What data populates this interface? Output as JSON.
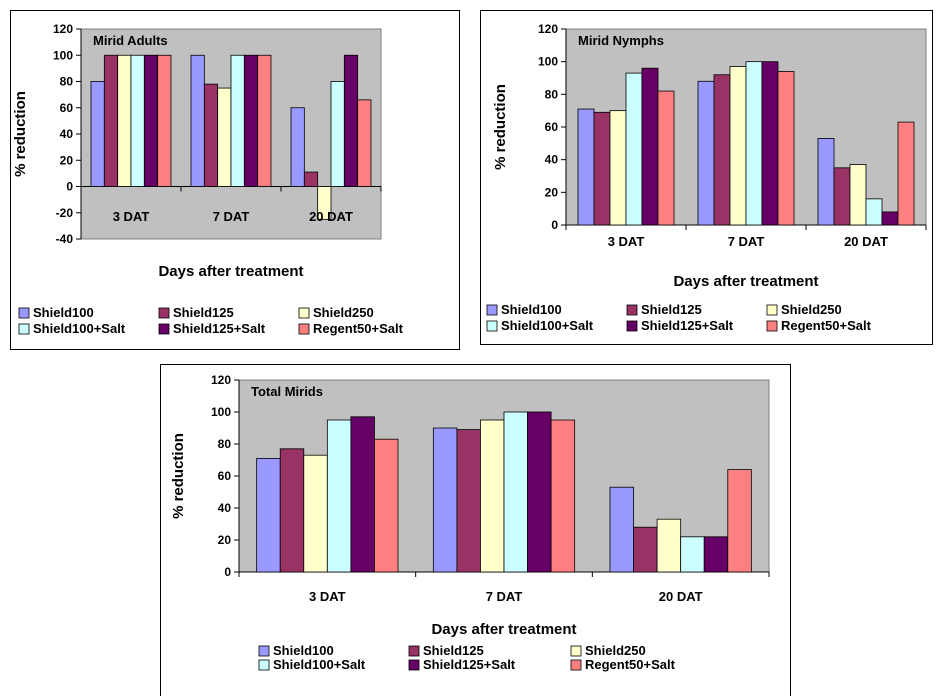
{
  "chart_data": [
    {
      "type": "bar",
      "title": "Mirid Adults",
      "xlabel": "Days after treatment",
      "ylabel": "% reduction",
      "ylim": [
        -40,
        120
      ],
      "yticks": [
        -40,
        -20,
        0,
        20,
        40,
        60,
        80,
        100,
        120
      ],
      "grid": false,
      "legend_position": "bottom",
      "categories": [
        "3 DAT",
        "7 DAT",
        "20 DAT"
      ],
      "series": [
        {
          "name": "Shield100",
          "color": "#9999ff",
          "values": [
            80,
            100,
            60
          ]
        },
        {
          "name": "Shield125",
          "color": "#993366",
          "values": [
            100,
            78,
            11
          ]
        },
        {
          "name": "Shield250",
          "color": "#ffffcc",
          "values": [
            100,
            75,
            -25
          ]
        },
        {
          "name": "Shield100+Salt",
          "color": "#ccffff",
          "values": [
            100,
            100,
            80
          ]
        },
        {
          "name": "Shield125+Salt",
          "color": "#660066",
          "values": [
            100,
            100,
            100
          ]
        },
        {
          "name": "Regent50+Salt",
          "color": "#ff8080",
          "values": [
            100,
            100,
            66
          ]
        }
      ]
    },
    {
      "type": "bar",
      "title": "Mirid Nymphs",
      "xlabel": "Days after treatment",
      "ylabel": "% reduction",
      "ylim": [
        0,
        120
      ],
      "yticks": [
        0,
        20,
        40,
        60,
        80,
        100,
        120
      ],
      "grid": false,
      "legend_position": "bottom",
      "categories": [
        "3 DAT",
        "7 DAT",
        "20 DAT"
      ],
      "series": [
        {
          "name": "Shield100",
          "color": "#9999ff",
          "values": [
            71,
            88,
            53
          ]
        },
        {
          "name": "Shield125",
          "color": "#993366",
          "values": [
            69,
            92,
            35
          ]
        },
        {
          "name": "Shield250",
          "color": "#ffffcc",
          "values": [
            70,
            97,
            37
          ]
        },
        {
          "name": "Shield100+Salt",
          "color": "#ccffff",
          "values": [
            93,
            100,
            16
          ]
        },
        {
          "name": "Shield125+Salt",
          "color": "#660066",
          "values": [
            96,
            100,
            8
          ]
        },
        {
          "name": "Regent50+Salt",
          "color": "#ff8080",
          "values": [
            82,
            94,
            63
          ]
        }
      ]
    },
    {
      "type": "bar",
      "title": "Total Mirids",
      "xlabel": "Days after treatment",
      "ylabel": "% reduction",
      "ylim": [
        0,
        120
      ],
      "yticks": [
        0,
        20,
        40,
        60,
        80,
        100,
        120
      ],
      "grid": false,
      "legend_position": "bottom",
      "categories": [
        "3 DAT",
        "7 DAT",
        "20 DAT"
      ],
      "series": [
        {
          "name": "Shield100",
          "color": "#9999ff",
          "values": [
            71,
            90,
            53
          ]
        },
        {
          "name": "Shield125",
          "color": "#993366",
          "values": [
            77,
            89,
            28
          ]
        },
        {
          "name": "Shield250",
          "color": "#ffffcc",
          "values": [
            73,
            95,
            33
          ]
        },
        {
          "name": "Shield100+Salt",
          "color": "#ccffff",
          "values": [
            95,
            100,
            22
          ]
        },
        {
          "name": "Shield125+Salt",
          "color": "#660066",
          "values": [
            97,
            100,
            22
          ]
        },
        {
          "name": "Regent50+Salt",
          "color": "#ff8080",
          "values": [
            83,
            95,
            64
          ]
        }
      ]
    }
  ]
}
